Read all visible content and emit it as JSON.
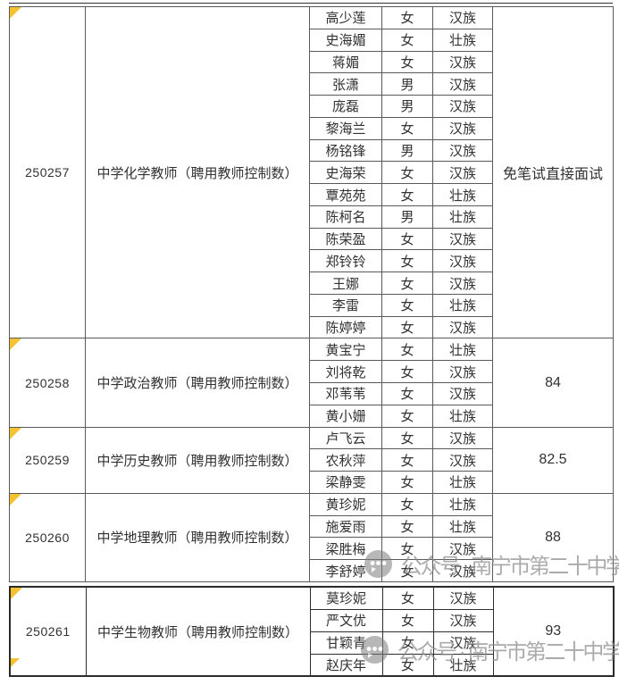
{
  "watermark": {
    "text": "公众号 · 南宁市第二十中学",
    "icon": "wechat-official-account-icon",
    "color": "#8f8f8f"
  },
  "marker_color": "#f5c231",
  "groups": [
    {
      "code": "250257",
      "position": "中学化学教师（聘用教师控制数）",
      "result": "免笔试直接面试",
      "members": [
        {
          "name": "高少莲",
          "gender": "女",
          "ethnicity": "汉族"
        },
        {
          "name": "史海媚",
          "gender": "女",
          "ethnicity": "壮族"
        },
        {
          "name": "蒋媚",
          "gender": "女",
          "ethnicity": "汉族"
        },
        {
          "name": "张潇",
          "gender": "男",
          "ethnicity": "汉族"
        },
        {
          "name": "庞磊",
          "gender": "男",
          "ethnicity": "汉族"
        },
        {
          "name": "黎海兰",
          "gender": "女",
          "ethnicity": "汉族"
        },
        {
          "name": "杨铭锋",
          "gender": "男",
          "ethnicity": "汉族"
        },
        {
          "name": "史海荣",
          "gender": "女",
          "ethnicity": "汉族"
        },
        {
          "name": "覃苑苑",
          "gender": "女",
          "ethnicity": "壮族"
        },
        {
          "name": "陈柯名",
          "gender": "男",
          "ethnicity": "壮族"
        },
        {
          "name": "陈荣盈",
          "gender": "女",
          "ethnicity": "汉族"
        },
        {
          "name": "郑铃铃",
          "gender": "女",
          "ethnicity": "汉族"
        },
        {
          "name": "王娜",
          "gender": "女",
          "ethnicity": "汉族"
        },
        {
          "name": "李雷",
          "gender": "女",
          "ethnicity": "壮族"
        },
        {
          "name": "陈婷婷",
          "gender": "女",
          "ethnicity": "汉族"
        }
      ]
    },
    {
      "code": "250258",
      "position": "中学政治教师（聘用教师控制数）",
      "result": "84",
      "members": [
        {
          "name": "黄宝宁",
          "gender": "女",
          "ethnicity": "壮族"
        },
        {
          "name": "刘将乾",
          "gender": "女",
          "ethnicity": "汉族"
        },
        {
          "name": "邓苇苇",
          "gender": "女",
          "ethnicity": "汉族"
        },
        {
          "name": "黄小姗",
          "gender": "女",
          "ethnicity": "壮族"
        }
      ]
    },
    {
      "code": "250259",
      "position": "中学历史教师（聘用教师控制数）",
      "result": "82.5",
      "members": [
        {
          "name": "卢飞云",
          "gender": "女",
          "ethnicity": "汉族"
        },
        {
          "name": "农秋萍",
          "gender": "女",
          "ethnicity": "汉族"
        },
        {
          "name": "梁静雯",
          "gender": "女",
          "ethnicity": "壮族"
        }
      ]
    },
    {
      "code": "250260",
      "position": "中学地理教师（聘用教师控制数）",
      "result": "88",
      "members": [
        {
          "name": "黄珍妮",
          "gender": "女",
          "ethnicity": "壮族"
        },
        {
          "name": "施爱雨",
          "gender": "女",
          "ethnicity": "壮族"
        },
        {
          "name": "梁胜梅",
          "gender": "女",
          "ethnicity": "汉族"
        },
        {
          "name": "李舒婷",
          "gender": "女",
          "ethnicity": "汉族"
        }
      ]
    },
    {
      "code": "250261",
      "position": "中学生物教师（聘用教师控制数）",
      "result": "93",
      "members": [
        {
          "name": "莫珍妮",
          "gender": "女",
          "ethnicity": "汉族"
        },
        {
          "name": "严文优",
          "gender": "女",
          "ethnicity": "汉族"
        },
        {
          "name": "甘颖青",
          "gender": "女",
          "ethnicity": "汉族"
        },
        {
          "name": "赵庆年",
          "gender": "女",
          "ethnicity": "壮族"
        }
      ]
    }
  ]
}
